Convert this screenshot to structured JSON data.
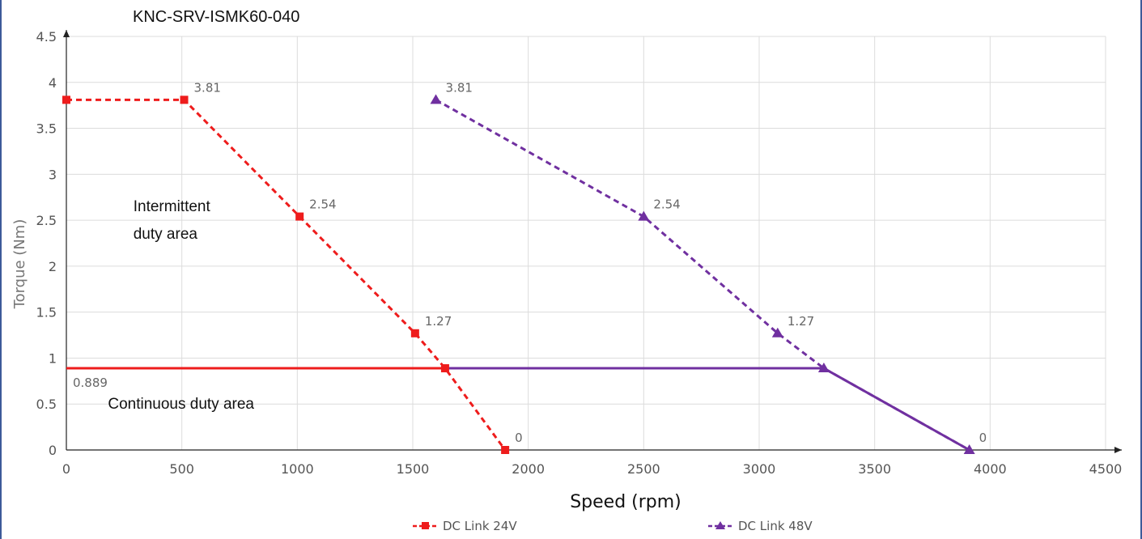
{
  "chart_data": {
    "type": "line",
    "title": "KNC-SRV-ISMK60-040",
    "xlabel": "Speed (rpm)",
    "ylabel": "Torque (Nm)",
    "xlim": [
      0,
      4500
    ],
    "ylim": [
      0,
      4.5
    ],
    "xticks": [
      "0",
      "500",
      "1000",
      "1500",
      "2000",
      "2500",
      "3000",
      "3500",
      "4000",
      "4500"
    ],
    "yticks": [
      "0",
      "0.5",
      "1",
      "1.5",
      "2",
      "2.5",
      "3",
      "3.5",
      "4",
      "4.5"
    ],
    "grid": true,
    "legend_position": "bottom",
    "series": [
      {
        "name": "DC Link 24V",
        "color": "#ee1c1c",
        "marker": "square",
        "line_style": "dashed",
        "points": [
          {
            "x": 0,
            "y": 3.81,
            "label": ""
          },
          {
            "x": 510,
            "y": 3.81,
            "label": "3.81"
          },
          {
            "x": 1010,
            "y": 2.54,
            "label": "2.54"
          },
          {
            "x": 1510,
            "y": 1.27,
            "label": "1.27"
          },
          {
            "x": 1640,
            "y": 0.889,
            "label": ""
          },
          {
            "x": 1900,
            "y": 0,
            "label": "0"
          }
        ]
      },
      {
        "name": "DC Link 48V",
        "color": "#7030a0",
        "marker": "triangle",
        "line_style": "dashed",
        "points": [
          {
            "x": 1600,
            "y": 3.81,
            "label": "3.81"
          },
          {
            "x": 2500,
            "y": 2.54,
            "label": "2.54"
          },
          {
            "x": 3080,
            "y": 1.27,
            "label": "1.27"
          },
          {
            "x": 3280,
            "y": 0.889,
            "label": ""
          },
          {
            "x": 3910,
            "y": 0,
            "label": "0"
          }
        ]
      }
    ],
    "continuous_lines": [
      {
        "color": "#ee1c1c",
        "x": [
          0,
          1640
        ],
        "y": [
          0.889,
          0.889
        ]
      },
      {
        "color": "#7030a0",
        "x": [
          1640,
          3280
        ],
        "y": [
          0.889,
          0.889
        ]
      },
      {
        "color": "#7030a0",
        "x": [
          3280,
          3910
        ],
        "y": [
          0.889,
          0
        ]
      }
    ],
    "continuous_label": "0.889",
    "annotations": [
      {
        "text": "Intermittent",
        "x": 290,
        "y": 2.6
      },
      {
        "text": "duty area",
        "x": 290,
        "y": 2.3
      },
      {
        "text": "Continuous duty area",
        "x": 180,
        "y": 0.45
      }
    ]
  }
}
